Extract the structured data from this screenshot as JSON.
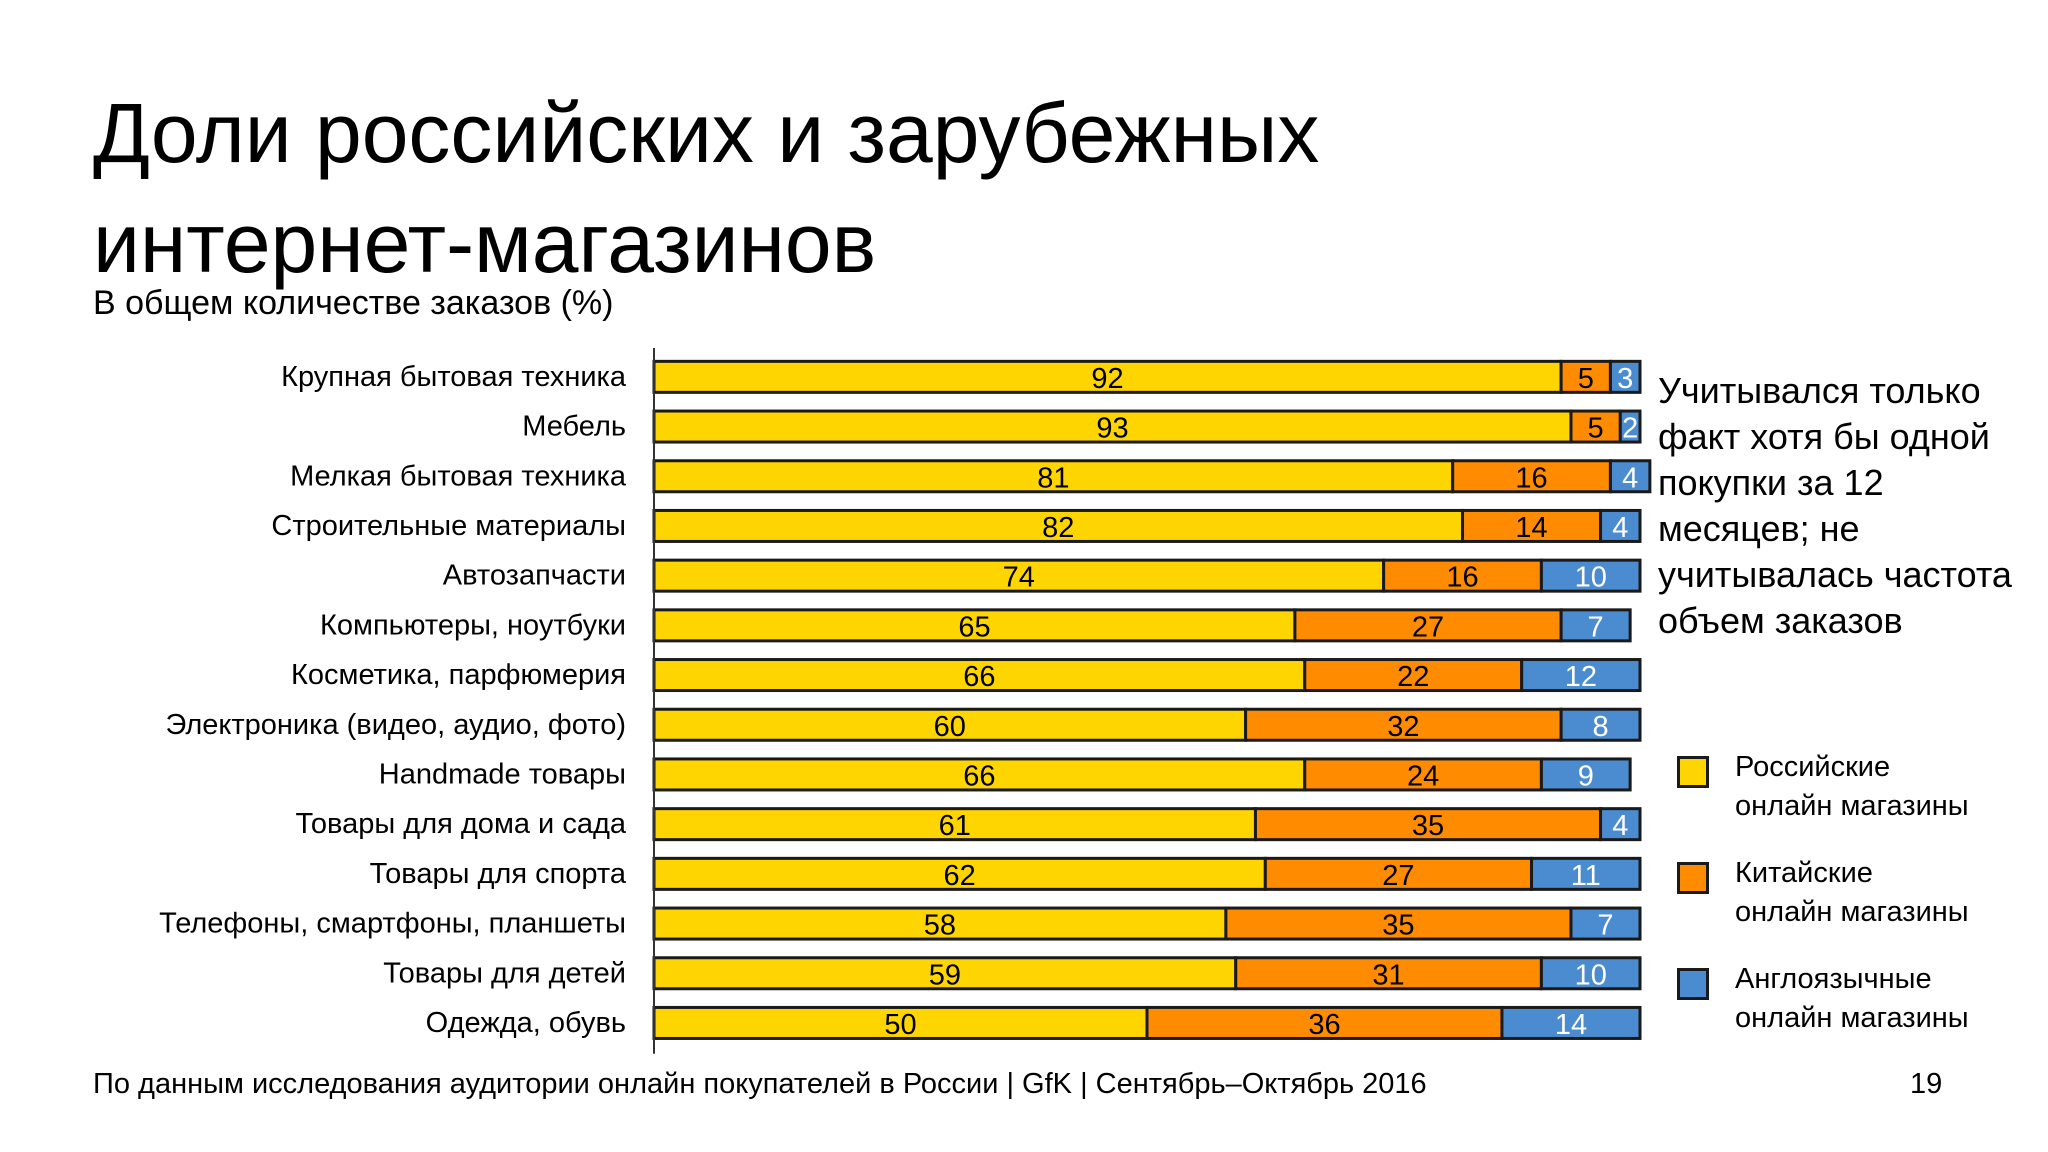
{
  "slide": {
    "title_line1": "Доли российских и зарубежных",
    "title_line2": "интернет-магазинов",
    "subtitle": "В общем количестве заказов (%)",
    "note_lines": [
      "Учитывался только",
      "факт хотя бы одной",
      "покупки за 12",
      "месяцев; не",
      "учитывалась частота",
      "объем заказов"
    ],
    "footer": "По данным исследования аудитории онлайн покупателей в России | GfK | Сентябрь–Октябрь 2016",
    "page_number": "19"
  },
  "legend": [
    {
      "line1": "Российские",
      "line2": "онлайн магазины",
      "color": "#FFD500"
    },
    {
      "line1": "Китайские",
      "line2": "онлайн магазины",
      "color": "#FF8C00"
    },
    {
      "line1": "Англоязычные",
      "line2": "онлайн магазины",
      "color": "#4A8CCF"
    }
  ],
  "chart_data": {
    "type": "bar",
    "orientation": "horizontal",
    "stacked": true,
    "categories": [
      "Крупная бытовая техника",
      "Мебель",
      "Мелкая бытовая техника",
      "Строительные материалы",
      "Автозапчасти",
      "Компьютеры, ноутбуки",
      "Косметика, парфюмерия",
      "Электроника (видео, аудио, фото)",
      "Handmade товары",
      "Товары для дома и сада",
      "Товары для спорта",
      "Телефоны, смартфоны, планшеты",
      "Товары для детей",
      "Одежда, обувь"
    ],
    "series": [
      {
        "name": "Российские онлайн магазины",
        "color": "#FFD500",
        "label_color": "#000000",
        "values": [
          92,
          93,
          81,
          82,
          74,
          65,
          66,
          60,
          66,
          61,
          62,
          58,
          59,
          50
        ]
      },
      {
        "name": "Китайские онлайн магазины",
        "color": "#FF8C00",
        "label_color": "#000000",
        "values": [
          5,
          5,
          16,
          14,
          16,
          27,
          22,
          32,
          24,
          35,
          27,
          35,
          31,
          36
        ]
      },
      {
        "name": "Англоязычные онлайн магазины",
        "color": "#4A8CCF",
        "label_color": "#FFFFFF",
        "values": [
          3,
          2,
          4,
          4,
          10,
          7,
          12,
          8,
          9,
          4,
          11,
          7,
          10,
          14
        ]
      }
    ],
    "data_labels": true,
    "xlim": [
      0,
      100
    ],
    "legend_position": "right",
    "grid": false
  }
}
